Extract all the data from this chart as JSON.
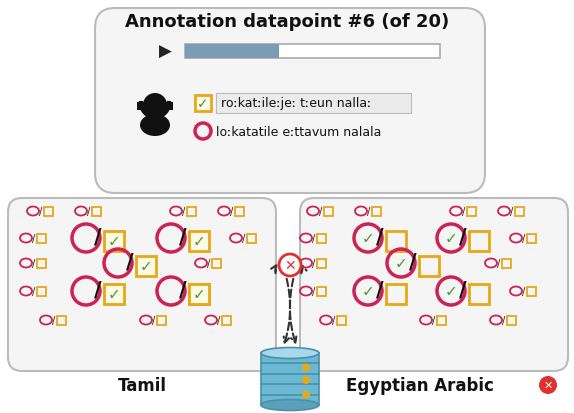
{
  "title": "Annotation datapoint #6 (of 20)",
  "transcript1": "roːkatːileːjeː tːeun nallaː",
  "transcript2": "loːkatatile eːttavum nalala",
  "label_tamil": "Tamil",
  "label_arabic": "Egyptian Arabic",
  "pink_color": "#cc2255",
  "gold_color": "#e6a817",
  "green_color": "#4a9a3a",
  "red_x_color": "#e03030",
  "db_color_top": "#a8cfe0",
  "db_color_mid": "#7ab8d0",
  "db_color_bot": "#5a9ab8",
  "db_dot": "#e6a817",
  "progress_fill": "#7a9db5",
  "progress_bg": "#ffffff",
  "box_bg": "#f5f5f5"
}
